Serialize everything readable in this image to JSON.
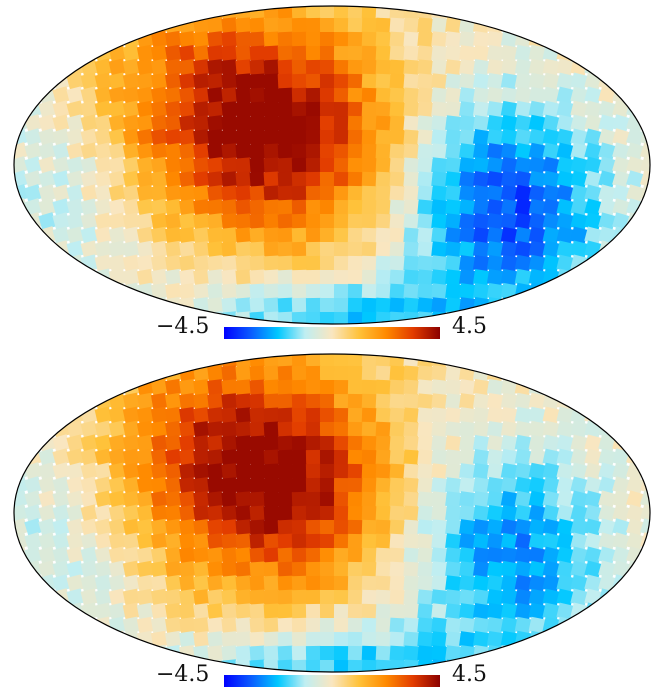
{
  "maps": [
    {
      "id": "top",
      "colorbar": {
        "min_label": "−4.5",
        "max_label": "4.5",
        "min": -4.5,
        "max": 4.5
      },
      "colormap": [
        "#0000ff",
        "#0a5cff",
        "#00c8ff",
        "#bfeef2",
        "#f9e6c0",
        "#ffc23a",
        "#ff8a00",
        "#e23c00",
        "#8b0000"
      ]
    },
    {
      "id": "bottom",
      "colorbar": {
        "min_label": "−4.5",
        "max_label": "4.5",
        "min": -4.5,
        "max": 4.5
      },
      "colormap": [
        "#0000ff",
        "#0a5cff",
        "#00c8ff",
        "#bfeef2",
        "#f9e6c0",
        "#ffc23a",
        "#ff8a00",
        "#e23c00",
        "#8b0000"
      ]
    }
  ]
}
